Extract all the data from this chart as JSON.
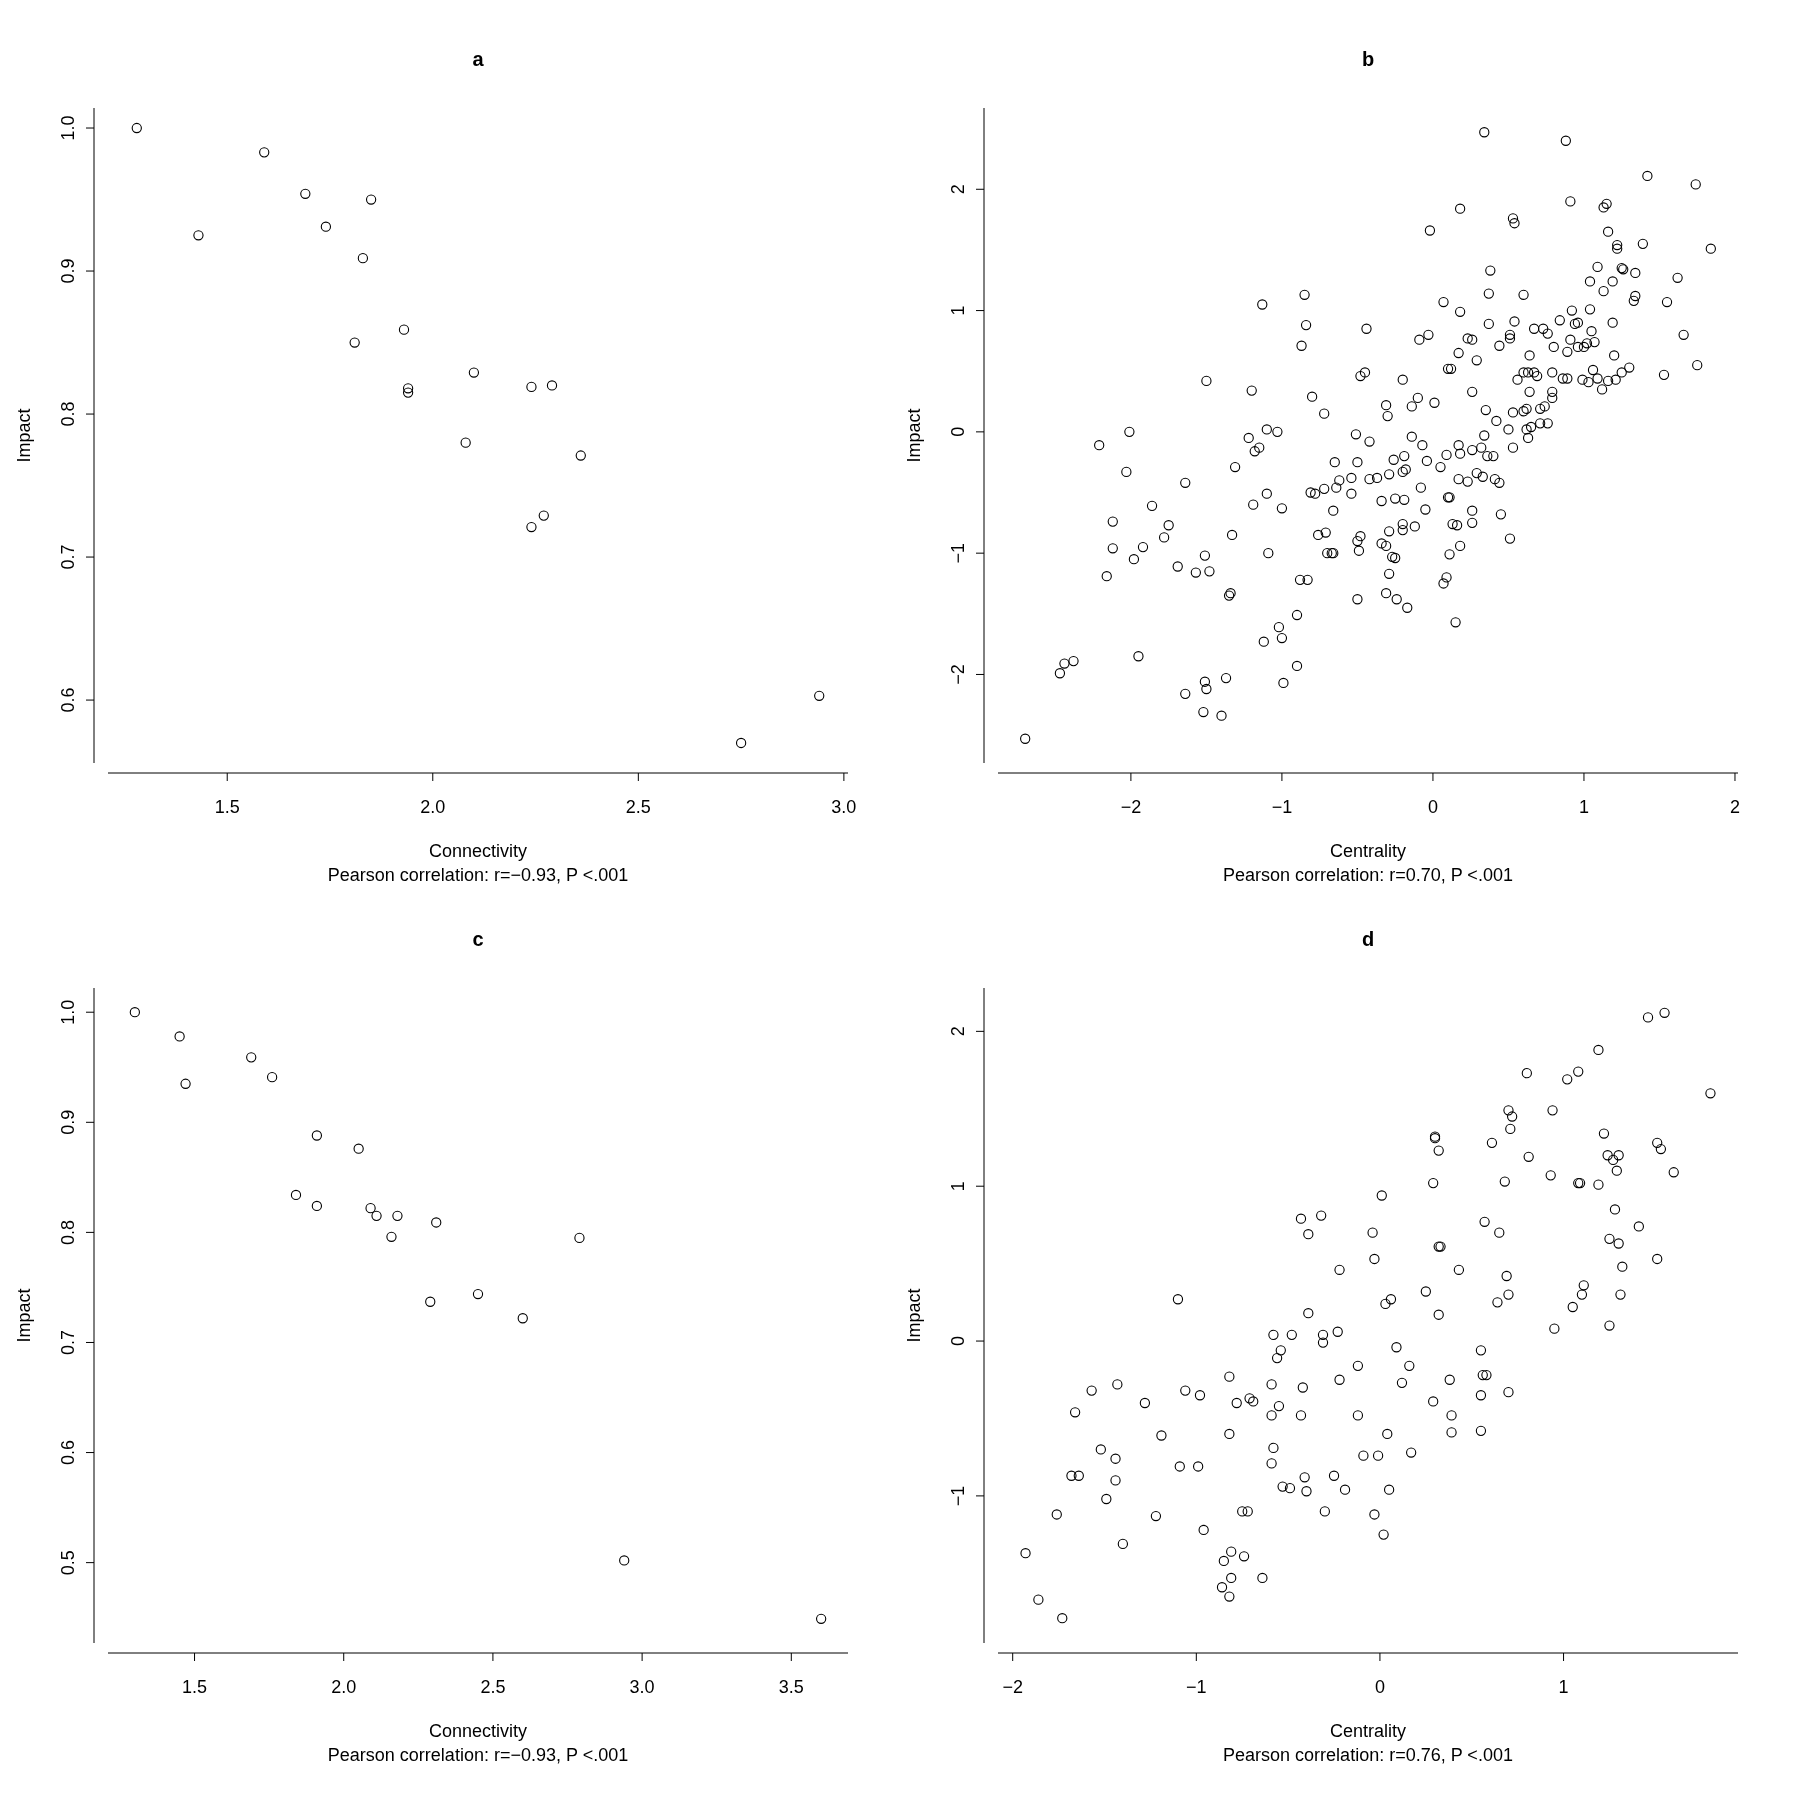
{
  "chart_data": [
    {
      "type": "scatter",
      "title": "a",
      "xlabel": "Connectivity",
      "ylabel": "Impact",
      "annotations": [
        "Pearson correlation: r=−0.93, P <.001"
      ],
      "marker": "circle",
      "xlim": [
        1.21,
        3.01
      ],
      "ylim": [
        0.556,
        1.014
      ],
      "xticks": [
        {
          "value": 1.5,
          "label": "1.5"
        },
        {
          "value": 2,
          "label": "2.0"
        },
        {
          "value": 2.5,
          "label": "2.5"
        },
        {
          "value": 3,
          "label": "3.0"
        }
      ],
      "yticks": [
        {
          "value": 0.6,
          "label": "0.6"
        },
        {
          "value": 0.7,
          "label": "0.7"
        },
        {
          "value": 0.8,
          "label": "0.8"
        },
        {
          "value": 0.9,
          "label": "0.9"
        },
        {
          "value": 1,
          "label": "1.0"
        }
      ],
      "series": [
        {
          "color": "#000000",
          "x": [
            1.28,
            1.43,
            1.59,
            1.69,
            1.74,
            1.85,
            1.83,
            1.81,
            1.93,
            1.94,
            1.94,
            2.1,
            2.08,
            2.24,
            2.29,
            2.36,
            2.24,
            2.27,
            2.75,
            2.94
          ],
          "values": [
            1.0,
            0.925,
            0.983,
            0.954,
            0.931,
            0.95,
            0.909,
            0.85,
            0.859,
            0.818,
            0.815,
            0.829,
            0.78,
            0.819,
            0.82,
            0.771,
            0.721,
            0.729,
            0.57,
            0.603
          ]
        }
      ]
    },
    {
      "type": "scatter",
      "title": "b",
      "xlabel": "Centrality",
      "ylabel": "Impact",
      "annotations": [
        "Pearson correlation: r=0.70, P <.001"
      ],
      "marker": "circle",
      "xlim": [
        -2.88,
        2.02
      ],
      "ylim": [
        -2.73,
        2.67
      ],
      "xticks": [
        {
          "value": -2,
          "label": "−2"
        },
        {
          "value": -1,
          "label": "−1"
        },
        0,
        1,
        2
      ],
      "yticks": [
        {
          "value": -2,
          "label": "−2"
        },
        {
          "value": -1,
          "label": "−1"
        },
        0,
        1,
        2
      ],
      "series": [
        {
          "color": "#000000",
          "x": [
            0.34,
            0.88,
            1.42,
            1.74,
            1.84,
            0.91,
            0.18,
            -0.02,
            0.53,
            0.54,
            1.13,
            1.15,
            1.16,
            1.39,
            1.22,
            1.22,
            1.25,
            1.26,
            1.09,
            1.34,
            1.62,
            1.04,
            1.19,
            0.38,
            0.37,
            0.6,
            1.34,
            1.33,
            1.13,
            1.55,
            1.66,
            1.53,
            1.75,
            0.07,
            -0.85,
            -1.13,
            -0.84,
            -0.87,
            -0.44,
            0.18,
            0.23,
            0.26,
            -0.03,
            -0.09,
            0.37,
            0.54,
            0.51,
            0.51,
            0.44,
            0.29,
            0.17,
            0.1,
            0.12,
            -0.2,
            -0.45,
            -0.48,
            -0.8,
            -0.72,
            -1.2,
            -0.14,
            -0.31,
            -0.3,
            -0.1,
            0.01,
            0.26,
            0.35,
            0.42,
            0.5,
            0.34,
            0.32,
            0.26,
            0.17,
            0.18,
            0.09,
            0.05,
            0.17,
            0.23,
            0.36,
            0.4,
            0.41,
            0.33,
            0.29,
            0.53,
            0.63,
            0.62,
            0.65,
            0.71,
            0.76,
            0.74,
            0.71,
            0.6,
            0.53,
            0.64,
            0.6,
            0.63,
            0.67,
            0.69,
            0.56,
            0.64,
            0.67,
            0.73,
            0.76,
            0.79,
            0.79,
            0.8,
            0.84,
            0.92,
            0.94,
            0.96,
            0.91,
            0.89,
            0.86,
            0.89,
            0.96,
            1.0,
            1.02,
            0.99,
            1.03,
            1.04,
            1.05,
            1.07,
            1.06,
            1.09,
            1.12,
            1.16,
            1.2,
            1.19,
            1.21,
            1.25,
            1.3,
            0.79,
            0.62,
            0.44,
            0.45,
            0.51,
            0.26,
            0.26,
            0.18,
            0.16,
            0.13,
            0.1,
            0.11,
            0.11,
            0.09,
            0.07,
            0.15,
            -0.04,
            -0.07,
            -0.14,
            -0.18,
            -0.2,
            -0.19,
            -0.26,
            -0.29,
            -0.25,
            -0.34,
            -0.37,
            -0.42,
            -0.5,
            -0.54,
            -0.54,
            -0.51,
            -0.42,
            -0.65,
            -0.62,
            -0.72,
            -0.81,
            -0.78,
            -0.48,
            -0.5,
            -0.49,
            -0.67,
            -0.7,
            -0.71,
            -0.66,
            -0.34,
            -0.31,
            -0.27,
            -0.29,
            -0.25,
            -0.2,
            -0.2,
            -0.12,
            -0.05,
            -0.08,
            -0.19,
            -0.29,
            -0.31,
            -0.24,
            -0.17,
            -0.5,
            -0.83,
            -0.88,
            -0.9,
            -1.02,
            -1.0,
            -1.12,
            -0.9,
            -0.99,
            -1.09,
            -1.1,
            -1.0,
            -1.03,
            -1.1,
            -1.15,
            -1.18,
            -1.22,
            -1.31,
            -1.19,
            -1.33,
            -1.34,
            -1.35,
            -1.37,
            -1.4,
            -1.52,
            -1.51,
            -1.5,
            -1.51,
            -1.48,
            -1.57,
            -1.5,
            -1.64,
            -1.64,
            -1.69,
            -1.75,
            -1.78,
            -1.86,
            -1.95,
            -1.98,
            -2.01,
            -2.03,
            -1.92,
            -2.12,
            -2.12,
            -2.16,
            -2.21,
            -2.38,
            -2.44,
            -2.47,
            -2.7,
            -0.64,
            -0.76,
            -0.66
          ],
          "values": [
            2.47,
            2.4,
            2.11,
            2.04,
            1.51,
            1.9,
            1.84,
            1.66,
            1.76,
            1.72,
            1.85,
            1.88,
            1.65,
            1.55,
            1.54,
            1.51,
            1.35,
            1.34,
            1.36,
            1.31,
            1.27,
            1.24,
            1.24,
            1.33,
            1.14,
            1.13,
            1.12,
            1.08,
            1.16,
            1.07,
            0.8,
            0.47,
            0.55,
            1.07,
            1.13,
            1.05,
            0.88,
            0.71,
            0.85,
            0.99,
            0.77,
            0.76,
            0.8,
            0.76,
            0.89,
            0.91,
            0.8,
            0.77,
            0.71,
            0.59,
            0.65,
            0.52,
            0.52,
            0.43,
            0.49,
            0.46,
            0.29,
            0.15,
            0.34,
            0.21,
            0.22,
            0.13,
            0.28,
            0.24,
            0.33,
            0.18,
            0.09,
            0.02,
            -0.03,
            -0.13,
            -0.15,
            -0.11,
            -0.18,
            -0.19,
            -0.29,
            -0.39,
            -0.41,
            -0.2,
            -0.2,
            -0.39,
            -0.37,
            -0.34,
            -0.13,
            -0.05,
            0.02,
            0.04,
            0.07,
            0.07,
            0.21,
            0.19,
            0.17,
            0.16,
            0.33,
            0.49,
            0.49,
            0.49,
            0.46,
            0.43,
            0.63,
            0.85,
            0.85,
            0.81,
            0.33,
            0.49,
            0.7,
            0.92,
            1.0,
            0.89,
            0.9,
            0.76,
            0.66,
            0.44,
            0.44,
            0.7,
            0.7,
            0.73,
            0.43,
            0.41,
            1.01,
            0.83,
            0.74,
            0.51,
            0.44,
            0.35,
            0.42,
            0.63,
            0.9,
            0.43,
            0.49,
            0.53,
            0.28,
            0.19,
            -0.42,
            -0.68,
            -0.88,
            -0.65,
            -0.75,
            -0.94,
            -0.77,
            -0.76,
            -0.54,
            -0.54,
            -1.01,
            -1.2,
            -1.25,
            -1.57,
            -0.24,
            -0.11,
            -0.04,
            -0.31,
            -0.33,
            -0.2,
            -0.23,
            -0.35,
            -0.55,
            -0.57,
            -0.38,
            -0.39,
            -0.25,
            -0.38,
            -0.51,
            -0.02,
            -0.08,
            -0.25,
            -0.4,
            -0.47,
            -0.5,
            -0.51,
            -0.86,
            -0.9,
            -0.98,
            -1.0,
            -1.0,
            -0.83,
            -0.65,
            -0.92,
            -0.94,
            -1.03,
            -0.82,
            -1.04,
            -0.81,
            -0.76,
            -0.78,
            -0.64,
            -0.46,
            -0.56,
            -1.17,
            -1.33,
            -1.38,
            -1.45,
            -1.38,
            -1.22,
            -1.22,
            -1.51,
            -1.61,
            -1.7,
            -1.73,
            -1.93,
            -2.07,
            -1.0,
            -0.51,
            -0.63,
            0.0,
            0.02,
            -0.13,
            -0.16,
            -0.05,
            -0.29,
            -0.6,
            -0.85,
            -1.33,
            -1.35,
            -2.03,
            -2.34,
            -2.31,
            -2.06,
            -2.12,
            -1.02,
            -1.15,
            -1.16,
            0.42,
            -2.16,
            -0.42,
            -1.11,
            -0.77,
            -0.87,
            -0.61,
            -1.85,
            -1.05,
            0.0,
            -0.33,
            -0.95,
            -0.74,
            -0.96,
            -1.19,
            -0.11,
            -1.89,
            -1.91,
            -1.99,
            -2.53,
            -0.46,
            -0.85,
            -1.0
          ]
        }
      ]
    },
    {
      "type": "scatter",
      "title": "c",
      "xlabel": "Connectivity",
      "ylabel": "Impact",
      "annotations": [
        "Pearson correlation: r=−0.93, P <.001"
      ],
      "marker": "circle",
      "xlim": [
        1.21,
        3.69
      ],
      "ylim": [
        0.427,
        1.022
      ],
      "xticks": [
        {
          "value": 1.5,
          "label": "1.5"
        },
        {
          "value": 2,
          "label": "2.0"
        },
        {
          "value": 2.5,
          "label": "2.5"
        },
        {
          "value": 3,
          "label": "3.0"
        },
        {
          "value": 3.5,
          "label": "3.5"
        }
      ],
      "yticks": [
        {
          "value": 0.5,
          "label": "0.5"
        },
        {
          "value": 0.6,
          "label": "0.6"
        },
        {
          "value": 0.7,
          "label": "0.7"
        },
        {
          "value": 0.8,
          "label": "0.8"
        },
        {
          "value": 0.9,
          "label": "0.9"
        },
        {
          "value": 1,
          "label": "1.0"
        }
      ],
      "series": [
        {
          "color": "#000000",
          "x": [
            1.3,
            1.45,
            1.47,
            1.69,
            1.76,
            1.91,
            2.05,
            1.84,
            1.91,
            2.09,
            2.11,
            2.18,
            2.16,
            2.31,
            2.29,
            2.45,
            2.6,
            2.79,
            2.94,
            3.6
          ],
          "values": [
            1.0,
            0.978,
            0.935,
            0.959,
            0.941,
            0.888,
            0.876,
            0.834,
            0.824,
            0.822,
            0.815,
            0.815,
            0.796,
            0.809,
            0.737,
            0.744,
            0.722,
            0.795,
            0.502,
            0.449
          ]
        }
      ]
    },
    {
      "type": "scatter",
      "title": "d",
      "xlabel": "Centrality",
      "ylabel": "Impact",
      "annotations": [
        "Pearson correlation: r=0.76, P <.001"
      ],
      "marker": "circle",
      "xlim": [
        -2.08,
        1.95
      ],
      "ylim": [
        -1.95,
        2.28
      ],
      "xticks": [
        {
          "value": -2,
          "label": "−2"
        },
        {
          "value": -1,
          "label": "−1"
        },
        0,
        1
      ],
      "yticks": [
        {
          "value": -1,
          "label": "−1"
        },
        0,
        1,
        2
      ],
      "series": [
        {
          "color": "#000000",
          "x": [
            1.55,
            1.46,
            1.19,
            1.08,
            1.02,
            0.8,
            1.8,
            0.94,
            0.7,
            0.72,
            0.71,
            0.3,
            0.3,
            0.32,
            0.61,
            1.22,
            1.51,
            1.53,
            1.3,
            1.24,
            1.27,
            1.29,
            1.6,
            0.81,
            0.93,
            0.68,
            1.08,
            1.09,
            1.19,
            0.29,
            0.01,
            1.28,
            1.41,
            0.57,
            0.65,
            -0.04,
            -0.32,
            -0.43,
            -0.39,
            1.25,
            1.3,
            0.32,
            0.33,
            1.32,
            1.51,
            -0.03,
            -0.22,
            0.43,
            0.69,
            1.11,
            1.1,
            1.31,
            0.7,
            0.25,
            0.06,
            0.03,
            0.64,
            1.05,
            -1.1,
            0.32,
            -0.39,
            1.25,
            0.95,
            -0.23,
            -0.48,
            -0.58,
            -0.31,
            -0.31,
            0.09,
            0.55,
            -0.54,
            -0.56,
            -0.12,
            0.16,
            0.56,
            0.58,
            -0.82,
            -0.59,
            -0.22,
            0.38,
            -0.42,
            -0.71,
            -0.69,
            0.55,
            0.7,
            0.29,
            -0.55,
            0.39,
            -1.28,
            -0.98,
            -1.06,
            -0.78,
            -0.43,
            -0.12,
            -0.59,
            0.12,
            -1.43,
            -1.57,
            -1.66,
            -1.19,
            -0.82,
            0.04,
            0.39,
            0.55,
            -0.58,
            -1.52,
            -1.44,
            -0.59,
            -0.09,
            -0.01,
            0.17,
            -1.09,
            -0.99,
            -1.44,
            -0.41,
            -0.25,
            -0.53,
            -0.49,
            -0.4,
            -0.19,
            0.05,
            -1.68,
            -1.64,
            -1.49,
            -1.76,
            -1.22,
            -0.75,
            -0.72,
            -0.3,
            -0.03,
            -1.4,
            -0.96,
            0.02,
            -1.93,
            -0.81,
            -0.74,
            -0.85,
            -0.86,
            -0.81,
            -0.82,
            -0.64,
            -1.86,
            -1.73
          ],
          "values": [
            2.12,
            2.09,
            1.88,
            1.74,
            1.69,
            1.73,
            1.6,
            1.49,
            1.49,
            1.45,
            1.37,
            1.32,
            1.31,
            1.23,
            1.28,
            1.34,
            1.28,
            1.24,
            1.2,
            1.2,
            1.17,
            1.1,
            1.09,
            1.19,
            1.07,
            1.03,
            1.02,
            1.02,
            1.01,
            1.02,
            0.94,
            0.85,
            0.74,
            0.77,
            0.7,
            0.7,
            0.81,
            0.79,
            0.69,
            0.66,
            0.63,
            0.61,
            0.61,
            0.48,
            0.53,
            0.53,
            0.46,
            0.46,
            0.42,
            0.36,
            0.3,
            0.3,
            0.3,
            0.32,
            0.27,
            0.24,
            0.25,
            0.22,
            0.27,
            0.17,
            0.18,
            0.1,
            0.08,
            0.06,
            0.04,
            0.04,
            0.04,
            -0.01,
            -0.04,
            -0.06,
            -0.06,
            -0.11,
            -0.16,
            -0.16,
            -0.22,
            -0.22,
            -0.23,
            -0.28,
            -0.25,
            -0.25,
            -0.3,
            -0.37,
            -0.39,
            -0.35,
            -0.33,
            -0.39,
            -0.42,
            -0.48,
            -0.4,
            -0.35,
            -0.32,
            -0.4,
            -0.48,
            -0.48,
            -0.48,
            -0.27,
            -0.28,
            -0.32,
            -0.46,
            -0.61,
            -0.6,
            -0.6,
            -0.59,
            -0.58,
            -0.69,
            -0.7,
            -0.76,
            -0.79,
            -0.74,
            -0.74,
            -0.72,
            -0.81,
            -0.81,
            -0.9,
            -0.88,
            -0.87,
            -0.94,
            -0.95,
            -0.97,
            -0.96,
            -0.96,
            -0.87,
            -0.87,
            -1.02,
            -1.12,
            -1.13,
            -1.1,
            -1.1,
            -1.1,
            -1.12,
            -1.31,
            -1.22,
            -1.25,
            -1.37,
            -1.36,
            -1.39,
            -1.42,
            -1.59,
            -1.53,
            -1.65,
            -1.53,
            -1.67,
            -1.79
          ]
        }
      ]
    }
  ]
}
